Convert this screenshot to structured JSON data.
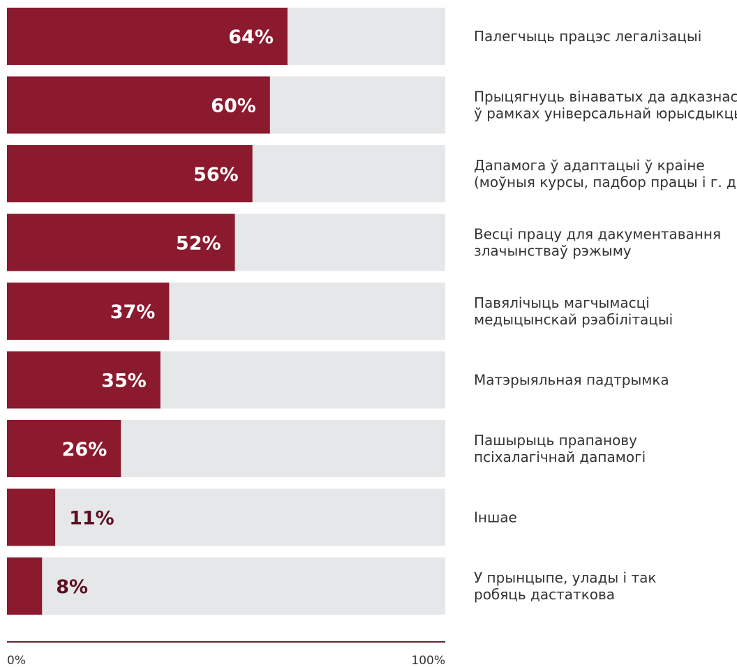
{
  "chart_data": {
    "type": "bar",
    "orientation": "horizontal",
    "title": "",
    "xlabel": "",
    "ylabel": "",
    "xlim": [
      0,
      100
    ],
    "unit": "%",
    "categories": [
      [
        "Палегчыць працэс легалізацыі"
      ],
      [
        "Прыцягнуць вінаватых да адказнасці",
        "ў рамках універсальнай юрысдыкцыі"
      ],
      [
        "Дапамога ў адаптацыі ў краіне",
        "(моўныя курсы, падбор працы і г. д.)"
      ],
      [
        "Весці працу для дакументавання",
        "злачынстваў рэжыму"
      ],
      [
        "Павялічыць магчымасці",
        "медыцынскай рэабілітацыі"
      ],
      [
        "Матэрыяльная падтрымка"
      ],
      [
        "Пашырыць прапанову",
        "псіхалагічнай дапамогі"
      ],
      [
        "Іншае"
      ],
      [
        "У прынцыпе, улады і так",
        "робяць дастаткова"
      ]
    ],
    "values": [
      64,
      60,
      56,
      52,
      37,
      35,
      26,
      11,
      8
    ],
    "value_labels": [
      "64%",
      "60%",
      "56%",
      "52%",
      "37%",
      "35%",
      "26%",
      "11%",
      "8%"
    ],
    "ticks": [
      "0%",
      "100%"
    ],
    "grid": false,
    "legend": "none",
    "colors": {
      "bar": "#8b1a2e",
      "track": "#e6e7e8",
      "label_inside": "#ffffff",
      "label_outside": "#5c1022",
      "axis": "#6b2232"
    }
  }
}
